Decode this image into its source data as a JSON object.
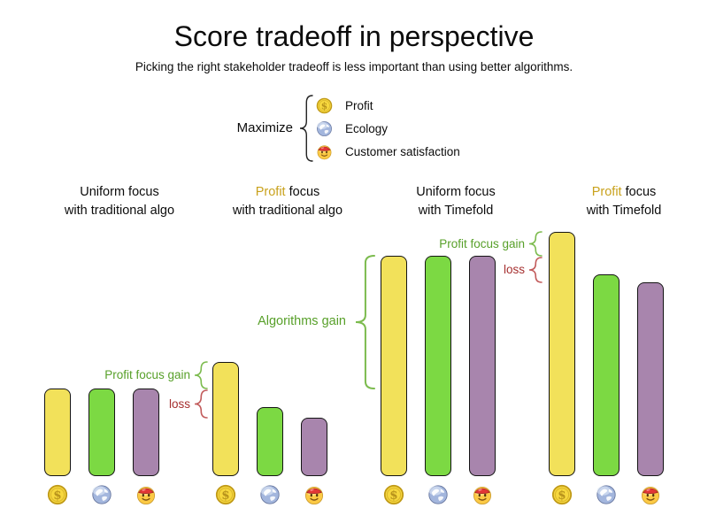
{
  "title": "Score tradeoff in perspective",
  "subtitle": "Picking the right stakeholder tradeoff is less important than using better algorithms.",
  "legend": {
    "label": "Maximize",
    "items": [
      {
        "icon": "coin-icon",
        "label": "Profit"
      },
      {
        "icon": "globe-icon",
        "label": "Ecology"
      },
      {
        "icon": "smiley-icon",
        "label": "Customer satisfaction"
      }
    ]
  },
  "colors": {
    "profit_bar": "#f2e15a",
    "ecology_bar": "#7cd943",
    "customer_bar": "#a885ad",
    "profit_word": "#c9a21d",
    "gain_text": "#58a02a",
    "gain_brace": "#7cbb4e",
    "loss_text": "#a63030",
    "loss_brace": "#c25b5b",
    "label_text": "#0c0c0c"
  },
  "chart_data": {
    "type": "bar",
    "title": "Score tradeoff in perspective",
    "subtitle": "Picking the right stakeholder tradeoff is less important than using better algorithms.",
    "stakeholders": [
      "Profit",
      "Ecology",
      "Customer satisfaction"
    ],
    "bar_colors": [
      "#f2e15a",
      "#7cd943",
      "#a885ad"
    ],
    "icon_names": [
      "coin-icon",
      "globe-icon",
      "smiley-icon"
    ],
    "ylim": [
      0,
      100
    ],
    "axis_note": "no axis shown; values estimated from relative bar heights",
    "groups": [
      {
        "name": "uniform-traditional",
        "label_line1_parts": [
          {
            "text": "Uniform focus",
            "highlight": false
          }
        ],
        "label_line2": "with traditional algo",
        "values": [
          33,
          33,
          33
        ]
      },
      {
        "name": "profit-traditional",
        "label_line1_parts": [
          {
            "text": "Profit",
            "highlight": true
          },
          {
            "text": " focus",
            "highlight": false
          }
        ],
        "label_line2": "with traditional algo",
        "values": [
          43,
          26,
          22
        ]
      },
      {
        "name": "uniform-timefold",
        "label_line1_parts": [
          {
            "text": "Uniform focus",
            "highlight": false
          }
        ],
        "label_line2": "with Timefold",
        "values": [
          83,
          83,
          83
        ]
      },
      {
        "name": "profit-timefold",
        "label_line1_parts": [
          {
            "text": "Profit",
            "highlight": true
          },
          {
            "text": " focus",
            "highlight": false
          }
        ],
        "label_line2": "with Timefold",
        "values": [
          92,
          76,
          73
        ]
      }
    ],
    "annotations": [
      {
        "text": "Profit focus gain",
        "kind": "gain",
        "group": "profit-traditional",
        "span": [
          33,
          43
        ]
      },
      {
        "text": "loss",
        "kind": "loss",
        "group": "profit-traditional",
        "span": [
          22,
          33
        ]
      },
      {
        "text": "Algorithms gain",
        "kind": "gain",
        "group": "uniform-timefold",
        "span": [
          33,
          83
        ]
      },
      {
        "text": "Profit focus gain",
        "kind": "gain",
        "group": "profit-timefold",
        "span": [
          83,
          92
        ]
      },
      {
        "text": "loss",
        "kind": "loss",
        "group": "profit-timefold",
        "span": [
          73,
          83
        ]
      }
    ]
  }
}
